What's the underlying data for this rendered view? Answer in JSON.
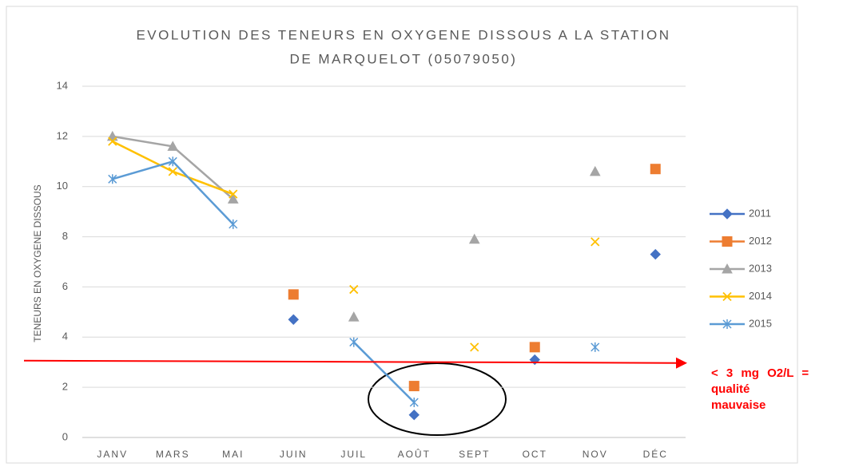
{
  "chart_data": {
    "type": "line",
    "title": [
      "EVOLUTION DES TENEURS EN OXYGENE DISSOUS A LA STATION",
      "DE MARQUELOT (05079050)"
    ],
    "y_label": "TENEURS EN OXYGENE DISSOUS",
    "categories": [
      "JANV",
      "MARS",
      "MAI",
      "JUIN",
      "JUIL",
      "AOÛT",
      "SEPT",
      "OCT",
      "NOV",
      "DÉC"
    ],
    "series": [
      {
        "name": "2011",
        "color": "#4472c4",
        "marker": "diamond",
        "values": [
          null,
          null,
          null,
          4.7,
          null,
          0.9,
          null,
          3.1,
          null,
          7.3
        ]
      },
      {
        "name": "2012",
        "color": "#ed7d31",
        "marker": "square",
        "values": [
          null,
          null,
          null,
          5.7,
          null,
          2.05,
          null,
          3.6,
          null,
          10.7
        ]
      },
      {
        "name": "2013",
        "color": "#a5a5a5",
        "marker": "triangle",
        "values": [
          12.0,
          11.6,
          9.5,
          null,
          4.8,
          null,
          7.9,
          null,
          10.6,
          null
        ]
      },
      {
        "name": "2014",
        "color": "#ffc000",
        "marker": "x",
        "values": [
          11.8,
          10.6,
          9.7,
          null,
          5.9,
          null,
          3.6,
          null,
          7.8,
          null
        ]
      },
      {
        "name": "2015",
        "color": "#5b9bd5",
        "marker": "star",
        "values": [
          10.3,
          11.0,
          8.5,
          null,
          3.8,
          1.4,
          null,
          null,
          3.6,
          null
        ]
      }
    ],
    "ylim": [
      0,
      14
    ],
    "yticks": [
      0,
      2,
      4,
      6,
      8,
      10,
      12,
      14
    ],
    "grid": true,
    "legend": "right",
    "reference_line": {
      "value": 3,
      "color": "#ff0000"
    },
    "annotation": [
      "< 3 mg O2/L =",
      "qualité",
      "mauvaise"
    ]
  }
}
